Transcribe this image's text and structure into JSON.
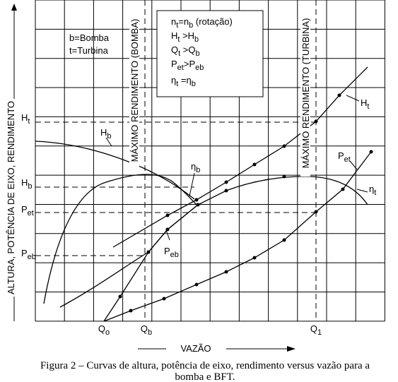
{
  "y_axis_label": "ALTURA, POTÊNCIA DE EIXO, RENDIMENTO",
  "x_axis_label": "VAZÃO",
  "caption": [
    "Figura 2 – Curvas de altura, potência de eixo, rendimento versus vazão para a",
    "bomba e BFT."
  ],
  "definitions": [
    "b=Bomba",
    "t=Turbina"
  ],
  "legend": [
    [
      "n",
      "t",
      "=n",
      "b",
      " (rotação)"
    ],
    [
      "H",
      "t",
      " >H",
      "b"
    ],
    [
      "Q",
      "t",
      " >Q",
      "b"
    ],
    [
      "P",
      "et",
      ">P",
      "eb"
    ],
    [
      "η",
      "t",
      " =η",
      "b"
    ]
  ],
  "max_efficiency": [
    "MÁXIMO RENDIMENTO (BOMBA)",
    "MÁXIMO RENDIMENTO (TURBINA)"
  ],
  "y_labels": [
    [
      "H",
      "t"
    ],
    [
      "H",
      "b"
    ],
    [
      "P",
      "et"
    ],
    [
      "P",
      "eb"
    ]
  ],
  "x_labels": [
    [
      "Q",
      "o"
    ],
    [
      "Q",
      "b"
    ],
    [
      "Q",
      "1"
    ]
  ],
  "curve_labels": [
    [
      "H",
      "t"
    ],
    [
      "H",
      "b"
    ],
    [
      "η",
      "b"
    ],
    [
      "P",
      "eb"
    ],
    [
      "P",
      "et"
    ],
    [
      "η",
      "t"
    ]
  ]
}
